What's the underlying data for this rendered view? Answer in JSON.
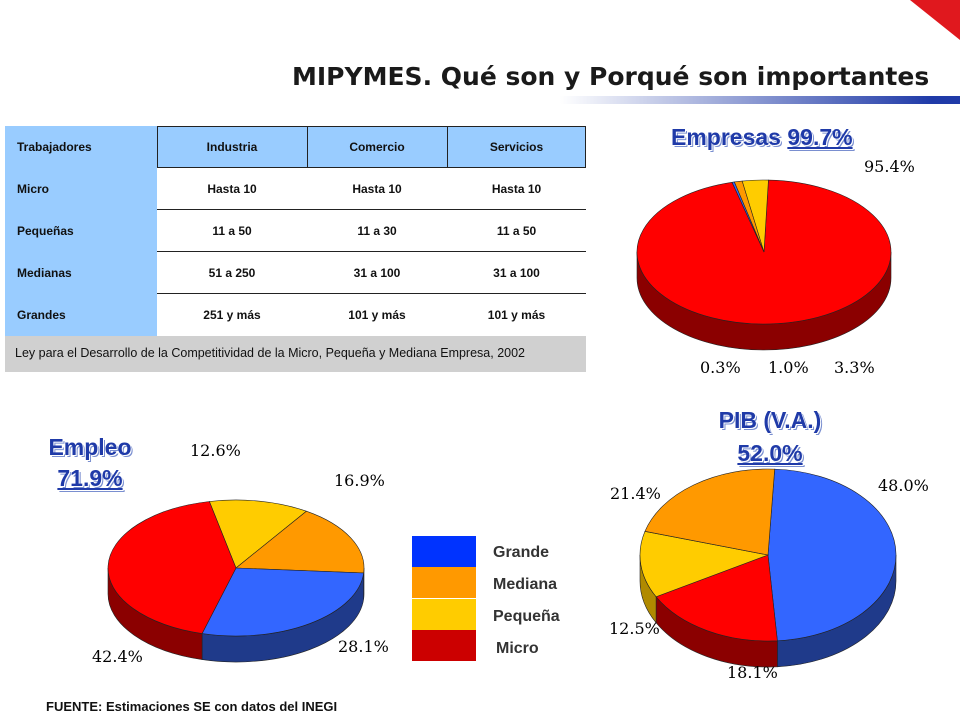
{
  "title": "MIPYMES. Qué son y Porqué son importantes",
  "colors": {
    "Grande": "#3366ff",
    "Mediana": "#ff9900",
    "Pequeña": "#ffcc00",
    "Micro": "#ff0000",
    "table_blue": "#99ccff",
    "title_blue": "#1f3aa8"
  },
  "table": {
    "headers": [
      "Trabajadores",
      "Industria",
      "Comercio",
      "Servicios"
    ],
    "rows": [
      [
        "Micro",
        "Hasta 10",
        "Hasta 10",
        "Hasta 10"
      ],
      [
        "Pequeñas",
        "11 a 50",
        "11 a 30",
        "11 a 50"
      ],
      [
        "Medianas",
        "51 a 250",
        "31 a 100",
        "31 a 100"
      ],
      [
        "Grandes",
        "251 y más",
        "101 y más",
        "101 y más"
      ]
    ],
    "footer": "Ley para el Desarrollo de la Competitividad de la Micro, Pequeña y Mediana Empresa, 2002"
  },
  "chart_titles": {
    "empresas_label": "Empresas",
    "empresas_value": "99.7%",
    "empleo_label": "Empleo",
    "empleo_value": "71.9%",
    "pib_label": "PIB (V.A.)",
    "pib_value": "52.0%"
  },
  "legend": [
    "Grande",
    "Mediana",
    "Pequeña",
    "Micro"
  ],
  "source": "FUENTE: Estimaciones SE con datos del INEGI",
  "chart_data": [
    {
      "type": "pie",
      "title": "Empresas 99.7%",
      "categories": [
        "Micro",
        "Grande",
        "Mediana",
        "Pequeña"
      ],
      "values": [
        95.4,
        0.3,
        1.0,
        3.3
      ],
      "labels": [
        "95.4%",
        "0.3%",
        "1.0%",
        "3.3%"
      ]
    },
    {
      "type": "pie",
      "title": "Empleo 71.9%",
      "categories": [
        "Pequeña",
        "Mediana",
        "Grande",
        "Micro"
      ],
      "values": [
        12.6,
        16.9,
        28.1,
        42.4
      ],
      "labels": [
        "12.6%",
        "16.9%",
        "28.1%",
        "42.4%"
      ]
    },
    {
      "type": "pie",
      "title": "PIB (V.A.) 52.0%",
      "categories": [
        "Grande",
        "Micro",
        "Pequeña",
        "Mediana"
      ],
      "values": [
        48.0,
        18.1,
        12.5,
        21.4
      ],
      "labels": [
        "48.0%",
        "18.1%",
        "12.5%",
        "21.4%"
      ]
    }
  ]
}
